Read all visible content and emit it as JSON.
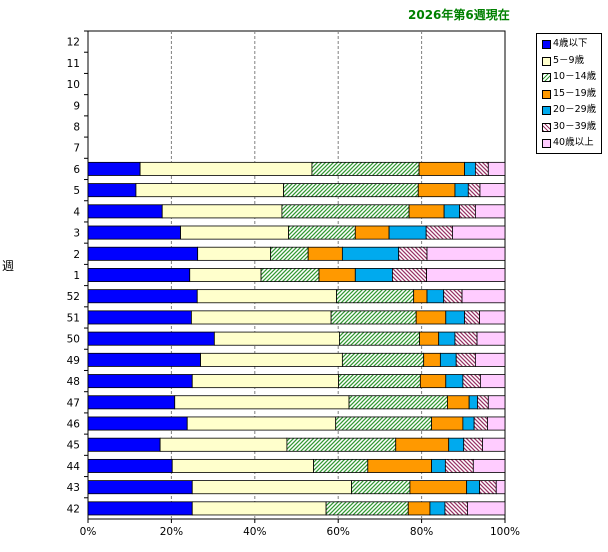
{
  "chart_data": {
    "type": "bar",
    "orientation": "horizontal",
    "stacked": "percent",
    "title": "2026年第6週現在",
    "xlabel": "",
    "ylabel": "週",
    "xlim": [
      0,
      100
    ],
    "x_ticks": [
      "0%",
      "20%",
      "40%",
      "60%",
      "80%",
      "100%"
    ],
    "grid": "vertical dashed",
    "legend_position": "right",
    "categories": [
      "12",
      "11",
      "10",
      "9",
      "8",
      "7",
      "6",
      "5",
      "4",
      "3",
      "2",
      "1",
      "52",
      "51",
      "50",
      "49",
      "48",
      "47",
      "46",
      "45",
      "44",
      "43",
      "42"
    ],
    "series": [
      {
        "name": "4歳以下",
        "color": "#0000ff",
        "pattern": "solid",
        "values": [
          null,
          null,
          null,
          null,
          null,
          null,
          12.5,
          11.5,
          17.8,
          22.2,
          26.3,
          24.4,
          26.2,
          24.8,
          30.3,
          27.0,
          25.0,
          20.8,
          23.8,
          17.3,
          20.2,
          25.0,
          25.0
        ]
      },
      {
        "name": "5－9歳",
        "color": "#ffffcc",
        "pattern": "solid",
        "values": [
          null,
          null,
          null,
          null,
          null,
          null,
          41.2,
          35.4,
          28.7,
          25.9,
          17.5,
          17.1,
          33.4,
          33.5,
          30.0,
          34.0,
          35.1,
          41.8,
          35.6,
          30.4,
          33.9,
          38.2,
          32.1
        ]
      },
      {
        "name": "10－14歳",
        "color": "#339933",
        "pattern": "hatch-forward",
        "values": [
          null,
          null,
          null,
          null,
          null,
          null,
          25.7,
          32.3,
          30.5,
          16.0,
          9.0,
          13.9,
          18.5,
          20.4,
          19.2,
          19.5,
          19.6,
          23.6,
          23.0,
          26.1,
          13.0,
          14.0,
          19.7
        ]
      },
      {
        "name": "15－19歳",
        "color": "#ff9900",
        "pattern": "solid",
        "values": [
          null,
          null,
          null,
          null,
          null,
          null,
          10.9,
          8.8,
          8.4,
          8.1,
          8.2,
          8.7,
          3.2,
          7.1,
          4.6,
          4.0,
          6.1,
          5.2,
          7.5,
          12.7,
          15.3,
          13.6,
          5.2
        ]
      },
      {
        "name": "20－29歳",
        "color": "#00aaee",
        "pattern": "solid",
        "values": [
          null,
          null,
          null,
          null,
          null,
          null,
          2.6,
          3.2,
          3.7,
          8.9,
          13.5,
          8.9,
          4.0,
          4.5,
          3.9,
          3.8,
          4.1,
          2.0,
          2.7,
          3.6,
          3.3,
          3.1,
          3.6
        ]
      },
      {
        "name": "30－39歳",
        "color": "#993366",
        "pattern": "hatch-back",
        "values": [
          null,
          null,
          null,
          null,
          null,
          null,
          3.1,
          2.8,
          3.8,
          6.3,
          6.8,
          8.2,
          4.4,
          3.6,
          5.3,
          4.6,
          4.2,
          2.6,
          3.2,
          4.5,
          6.7,
          4.0,
          5.4
        ]
      },
      {
        "name": "40歳以上",
        "color": "#ffccff",
        "pattern": "solid",
        "values": [
          null,
          null,
          null,
          null,
          null,
          null,
          4.0,
          6.0,
          7.1,
          12.6,
          18.7,
          18.8,
          10.3,
          6.1,
          6.7,
          7.1,
          5.9,
          4.0,
          4.2,
          5.4,
          7.6,
          2.1,
          9.0
        ]
      }
    ]
  }
}
